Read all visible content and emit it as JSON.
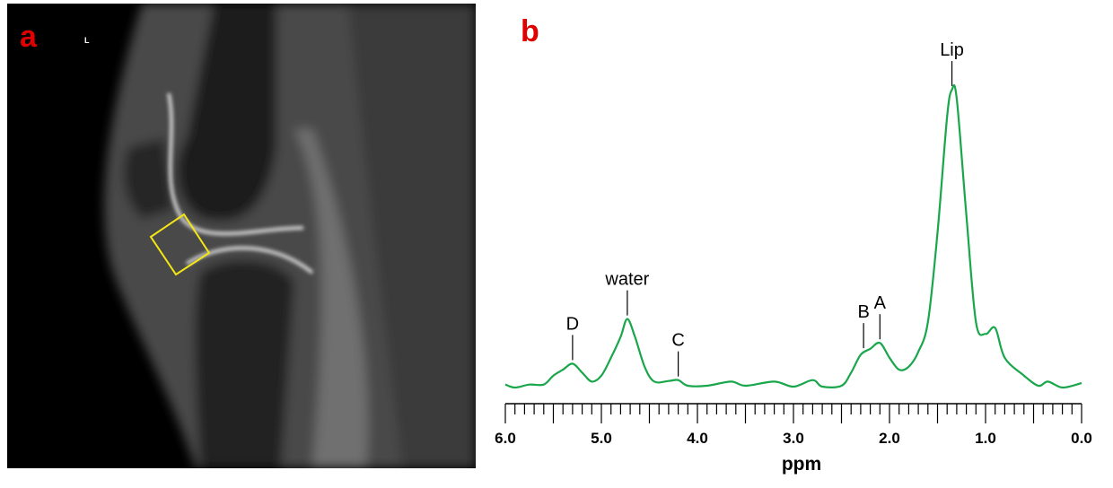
{
  "panel_a": {
    "label": "a",
    "orientation_marker": "L",
    "roi_color": "#f2e614"
  },
  "panel_b": {
    "label": "b"
  },
  "chart_data": {
    "type": "line",
    "title": "",
    "xlabel": "ppm",
    "ylabel": "",
    "xlim": [
      6.0,
      0.0
    ],
    "x_reversed": true,
    "ylim": [
      0,
      1.05
    ],
    "y_axis_shown": false,
    "grid": false,
    "line_color": "#1aa64a",
    "x_ticks": [
      "6.0",
      "5.0",
      "4.0",
      "3.0",
      "2.0",
      "1.0",
      "0.0"
    ],
    "x_tick_values": [
      6,
      5,
      4,
      3,
      2,
      1,
      0
    ],
    "series": [
      {
        "x": [
          6.0,
          5.9,
          5.75,
          5.6,
          5.5,
          5.4,
          5.3,
          5.2,
          5.1,
          5.0,
          4.9,
          4.8,
          4.73,
          4.65,
          4.55,
          4.45,
          4.3,
          4.2,
          4.1,
          3.9,
          3.65,
          3.5,
          3.2,
          3.0,
          2.8,
          2.7,
          2.5,
          2.4,
          2.3,
          2.2,
          2.1,
          2.0,
          1.9,
          1.8,
          1.7,
          1.6,
          1.5,
          1.4,
          1.35,
          1.3,
          1.2,
          1.1,
          1.0,
          0.9,
          0.8,
          0.6,
          0.45,
          0.35,
          0.2,
          0.0
        ],
        "y": [
          0.01,
          0.0,
          0.01,
          0.01,
          0.04,
          0.06,
          0.08,
          0.05,
          0.02,
          0.04,
          0.1,
          0.17,
          0.23,
          0.17,
          0.07,
          0.02,
          0.022,
          0.025,
          0.006,
          0.006,
          0.02,
          0.006,
          0.02,
          0.003,
          0.025,
          0.003,
          0.006,
          0.05,
          0.11,
          0.13,
          0.15,
          0.1,
          0.06,
          0.07,
          0.12,
          0.22,
          0.52,
          0.91,
          1.0,
          0.97,
          0.58,
          0.22,
          0.18,
          0.2,
          0.1,
          0.04,
          0.006,
          0.02,
          0.0,
          0.015
        ]
      }
    ],
    "annotations": [
      {
        "text": "Lip",
        "x": 1.35,
        "y": 1.0
      },
      {
        "text": "water",
        "x": 4.73,
        "y": 0.23
      },
      {
        "text": "D",
        "x": 5.3,
        "y": 0.08
      },
      {
        "text": "C",
        "x": 4.2,
        "y": 0.025
      },
      {
        "text": "B",
        "x": 2.27,
        "y": 0.12
      },
      {
        "text": "A",
        "x": 2.1,
        "y": 0.15
      }
    ]
  }
}
